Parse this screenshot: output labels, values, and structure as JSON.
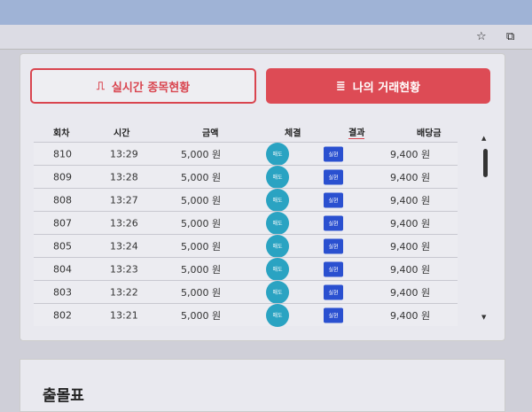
{
  "browser": {
    "star_icon": "star-icon",
    "extension_icon": "puzzle-icon"
  },
  "buttons": {
    "realtime": "실시간 종목현황",
    "my_trades": "나의 거래현황",
    "accent": "#dd4b55"
  },
  "table": {
    "headers": [
      "회차",
      "시간",
      "금액",
      "체결",
      "결과",
      "배당금"
    ],
    "rows": [
      {
        "round": "810",
        "time": "13:29",
        "amount": "5,000 원",
        "fill": "매도",
        "result": "실현",
        "payout": "9,400 원"
      },
      {
        "round": "809",
        "time": "13:28",
        "amount": "5,000 원",
        "fill": "매도",
        "result": "실현",
        "payout": "9,400 원"
      },
      {
        "round": "808",
        "time": "13:27",
        "amount": "5,000 원",
        "fill": "매도",
        "result": "실현",
        "payout": "9,400 원"
      },
      {
        "round": "807",
        "time": "13:26",
        "amount": "5,000 원",
        "fill": "매도",
        "result": "실현",
        "payout": "9,400 원"
      },
      {
        "round": "805",
        "time": "13:24",
        "amount": "5,000 원",
        "fill": "매도",
        "result": "실현",
        "payout": "9,400 원"
      },
      {
        "round": "804",
        "time": "13:23",
        "amount": "5,000 원",
        "fill": "매도",
        "result": "실현",
        "payout": "9,400 원"
      },
      {
        "round": "803",
        "time": "13:22",
        "amount": "5,000 원",
        "fill": "매도",
        "result": "실현",
        "payout": "9,400 원"
      },
      {
        "round": "802",
        "time": "13:21",
        "amount": "5,000 원",
        "fill": "매도",
        "result": "실현",
        "payout": "9,400 원"
      }
    ]
  },
  "section2": {
    "title": "출몰표"
  }
}
